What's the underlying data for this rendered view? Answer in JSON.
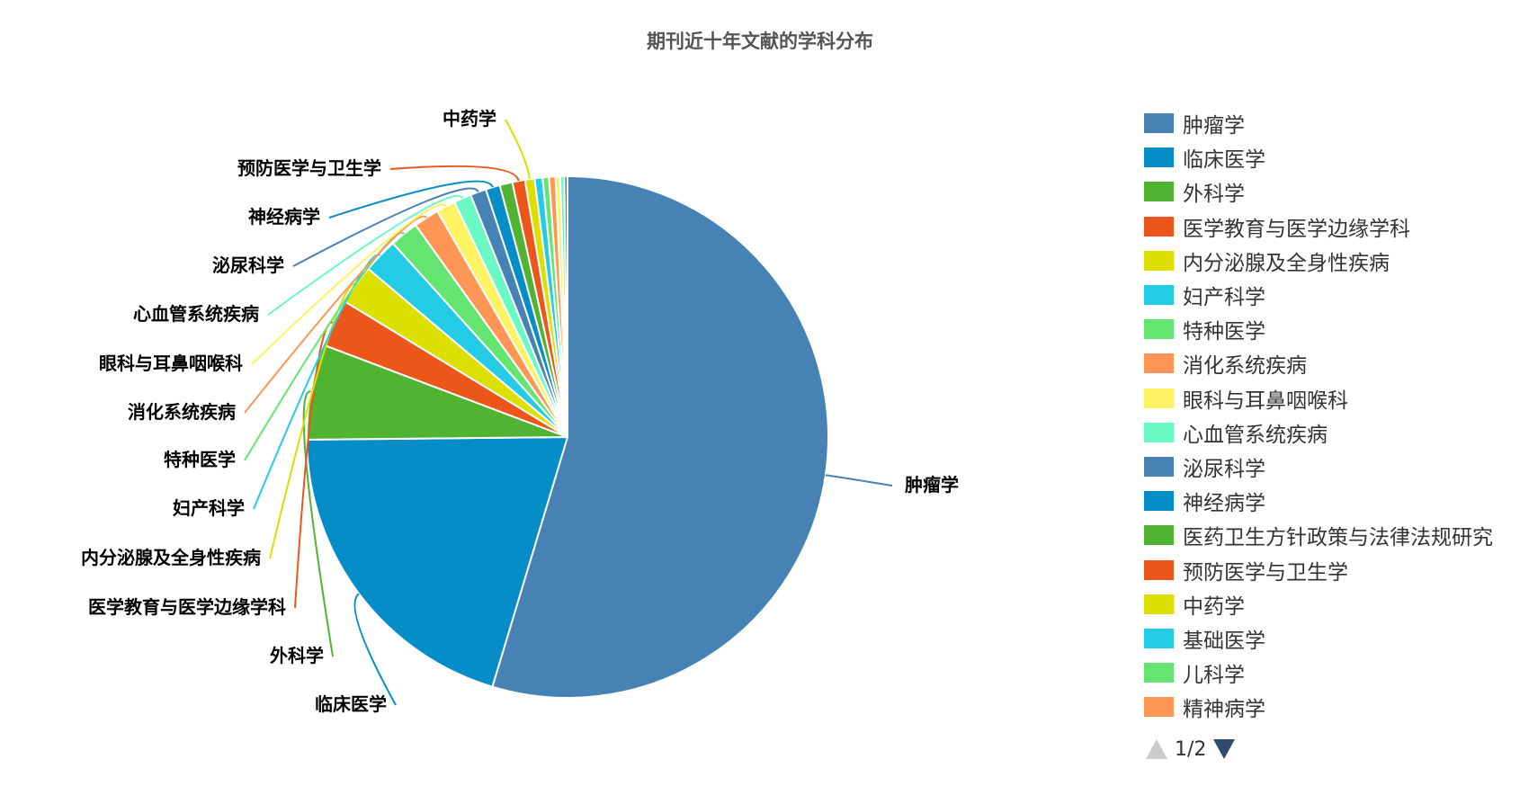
{
  "chart_data": {
    "type": "pie",
    "title": "期刊近十年文献的学科分布",
    "slices": [
      {
        "name": "肿瘤学",
        "value": 55.5,
        "color": "#4682b4",
        "show_label": true
      },
      {
        "name": "临床医学",
        "value": 20.5,
        "color": "#058dc7",
        "show_label": true
      },
      {
        "name": "外科学",
        "value": 6.0,
        "color": "#50b432",
        "show_label": true
      },
      {
        "name": "医学教育与医学边缘学科",
        "value": 3.0,
        "color": "#ed561b",
        "show_label": true
      },
      {
        "name": "内分泌腺及全身性疾病",
        "value": 2.5,
        "color": "#dddf00",
        "show_label": true
      },
      {
        "name": "妇产科学",
        "value": 2.2,
        "color": "#24cbe5",
        "show_label": true
      },
      {
        "name": "特种医学",
        "value": 1.8,
        "color": "#64e572",
        "show_label": true
      },
      {
        "name": "消化系统疾病",
        "value": 1.6,
        "color": "#ff9655",
        "show_label": true
      },
      {
        "name": "眼科与耳鼻咽喉科",
        "value": 1.2,
        "color": "#fff263",
        "show_label": true
      },
      {
        "name": "心血管系统疾病",
        "value": 1.1,
        "color": "#6af9c4",
        "show_label": true
      },
      {
        "name": "泌尿科学",
        "value": 1.0,
        "color": "#4682b4",
        "show_label": true
      },
      {
        "name": "神经病学",
        "value": 0.9,
        "color": "#058dc7",
        "show_label": true
      },
      {
        "name": "医药卫生方针政策与法律法规研究",
        "value": 0.8,
        "color": "#50b432",
        "show_label": false
      },
      {
        "name": "预防医学与卫生学",
        "value": 0.8,
        "color": "#ed561b",
        "show_label": true
      },
      {
        "name": "中药学",
        "value": 0.6,
        "color": "#dddf00",
        "show_label": true
      },
      {
        "name": "基础医学",
        "value": 0.5,
        "color": "#24cbe5",
        "show_label": false
      },
      {
        "name": "儿科学",
        "value": 0.4,
        "color": "#64e572",
        "show_label": false
      },
      {
        "name": "精神病学",
        "value": 0.4,
        "color": "#ff9655",
        "show_label": false
      },
      {
        "name": "",
        "value": 0.3,
        "color": "#fff263",
        "show_label": false
      },
      {
        "name": "",
        "value": 0.25,
        "color": "#6af9c4",
        "show_label": false
      },
      {
        "name": "",
        "value": 0.2,
        "color": "#4682b4",
        "show_label": false
      }
    ],
    "legend_position": "right"
  },
  "legend": {
    "items": [
      {
        "label": "肿瘤学",
        "color": "#4682b4"
      },
      {
        "label": "临床医学",
        "color": "#058dc7"
      },
      {
        "label": "外科学",
        "color": "#50b432"
      },
      {
        "label": "医学教育与医学边缘学科",
        "color": "#ed561b"
      },
      {
        "label": "内分泌腺及全身性疾病",
        "color": "#dddf00"
      },
      {
        "label": "妇产科学",
        "color": "#24cbe5"
      },
      {
        "label": "特种医学",
        "color": "#64e572"
      },
      {
        "label": "消化系统疾病",
        "color": "#ff9655"
      },
      {
        "label": "眼科与耳鼻咽喉科",
        "color": "#fff263"
      },
      {
        "label": "心血管系统疾病",
        "color": "#6af9c4"
      },
      {
        "label": "泌尿科学",
        "color": "#4682b4"
      },
      {
        "label": "神经病学",
        "color": "#058dc7"
      },
      {
        "label": "医药卫生方针政策与法律法规研究",
        "color": "#50b432"
      },
      {
        "label": "预防医学与卫生学",
        "color": "#ed561b"
      },
      {
        "label": "中药学",
        "color": "#dddf00"
      },
      {
        "label": "基础医学",
        "color": "#24cbe5"
      },
      {
        "label": "儿科学",
        "color": "#64e572"
      },
      {
        "label": "精神病学",
        "color": "#ff9655"
      }
    ],
    "pager": {
      "text": "1/2",
      "up_icon": "triangle-up-icon",
      "down_icon": "triangle-down-icon"
    }
  }
}
